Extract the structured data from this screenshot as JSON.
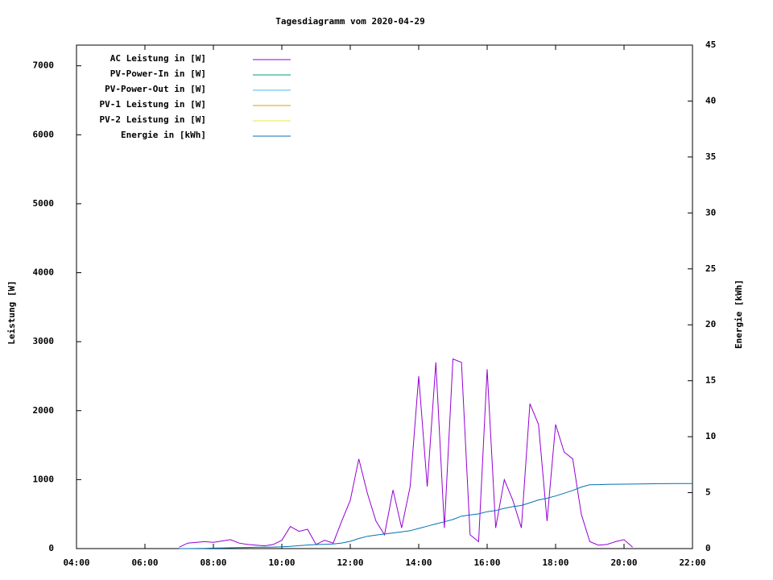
{
  "chart_data": {
    "type": "line",
    "title": "Tagesdiagramm vom 2020-04-29",
    "ylabel": "Leistung [W]",
    "y2label": "Energie [kWh]",
    "x": [
      4,
      4.25,
      4.5,
      4.75,
      5,
      5.25,
      5.5,
      5.75,
      6,
      6.25,
      6.5,
      6.75,
      7,
      7.25,
      7.5,
      7.75,
      8,
      8.25,
      8.5,
      8.75,
      9,
      9.25,
      9.5,
      9.75,
      10,
      10.25,
      10.5,
      10.75,
      11,
      11.25,
      11.5,
      11.75,
      12,
      12.25,
      12.5,
      12.75,
      13,
      13.25,
      13.5,
      13.75,
      14,
      14.25,
      14.5,
      14.75,
      15,
      15.25,
      15.5,
      15.75,
      16,
      16.25,
      16.5,
      16.75,
      17,
      17.25,
      17.5,
      17.75,
      18,
      18.25,
      18.5,
      18.75,
      19,
      19.25,
      19.5,
      19.75,
      20,
      20.25,
      20.5,
      20.75,
      21,
      21.25,
      21.5,
      21.75,
      22
    ],
    "xlim": [
      4,
      22
    ],
    "xticks": [
      {
        "value": 4,
        "label": "04:00"
      },
      {
        "value": 6,
        "label": "06:00"
      },
      {
        "value": 8,
        "label": "08:00"
      },
      {
        "value": 10,
        "label": "10:00"
      },
      {
        "value": 12,
        "label": "12:00"
      },
      {
        "value": 14,
        "label": "14:00"
      },
      {
        "value": 16,
        "label": "16:00"
      },
      {
        "value": 18,
        "label": "18:00"
      },
      {
        "value": 20,
        "label": "20:00"
      },
      {
        "value": 22,
        "label": "22:00"
      }
    ],
    "ylim": [
      0,
      7300
    ],
    "yticks": [
      0,
      1000,
      2000,
      3000,
      4000,
      5000,
      6000,
      7000
    ],
    "y2lim": [
      0,
      45
    ],
    "y2ticks": [
      0,
      5,
      10,
      15,
      20,
      25,
      30,
      35,
      40,
      45
    ],
    "series": [
      {
        "name": "AC Leistung in [W]",
        "color": "#9400d3",
        "values": [
          null,
          null,
          null,
          null,
          null,
          null,
          null,
          null,
          null,
          null,
          null,
          null,
          20,
          80,
          90,
          100,
          90,
          110,
          130,
          80,
          60,
          50,
          40,
          60,
          120,
          320,
          250,
          280,
          60,
          120,
          80,
          400,
          700,
          1300,
          800,
          400,
          200,
          850,
          300,
          900,
          2500,
          900,
          2700,
          300,
          2750,
          2700,
          200,
          100,
          2600,
          300,
          1000,
          700,
          300,
          2100,
          1800,
          400,
          1800,
          1400,
          1300,
          500,
          100,
          50,
          60,
          100,
          130,
          20,
          null,
          null,
          null,
          null,
          null,
          null,
          null
        ]
      },
      {
        "name": "PV-Power-In in [W]",
        "color": "#009e73",
        "values": [
          null,
          null,
          null,
          null,
          null,
          null,
          null,
          null,
          null,
          null,
          null,
          null,
          null,
          null,
          null,
          null,
          null,
          null,
          null,
          null,
          null,
          null,
          null,
          null,
          null,
          null,
          null,
          null,
          null,
          null,
          null,
          null,
          null,
          null,
          null,
          null,
          null,
          null,
          null,
          null,
          null,
          null,
          null,
          null,
          null,
          null,
          null,
          null,
          null,
          null,
          null,
          null,
          null,
          null,
          null,
          null,
          null,
          null,
          null,
          null,
          null,
          null,
          null,
          null,
          null,
          null,
          null,
          null,
          null,
          null,
          null,
          null,
          null
        ]
      },
      {
        "name": "PV-Power-Out in [W]",
        "color": "#56b4e9",
        "values": [
          null,
          null,
          null,
          null,
          null,
          null,
          null,
          null,
          null,
          null,
          null,
          null,
          null,
          null,
          null,
          null,
          null,
          null,
          null,
          null,
          null,
          null,
          null,
          null,
          null,
          null,
          null,
          null,
          null,
          null,
          null,
          null,
          null,
          null,
          null,
          null,
          null,
          null,
          null,
          null,
          null,
          null,
          null,
          null,
          null,
          null,
          null,
          null,
          null,
          null,
          null,
          null,
          null,
          null,
          null,
          null,
          null,
          null,
          null,
          null,
          null,
          null,
          null,
          null,
          null,
          null,
          null,
          null,
          null,
          null,
          null,
          null,
          null
        ]
      },
      {
        "name": "PV-1 Leistung in [W]",
        "color": "#e69f00",
        "values": [
          null,
          null,
          null,
          null,
          null,
          null,
          null,
          null,
          null,
          null,
          null,
          null,
          null,
          null,
          null,
          null,
          null,
          null,
          null,
          null,
          null,
          null,
          null,
          null,
          null,
          null,
          null,
          null,
          null,
          null,
          null,
          null,
          null,
          null,
          null,
          null,
          null,
          null,
          null,
          null,
          null,
          null,
          null,
          null,
          null,
          null,
          null,
          null,
          null,
          null,
          null,
          null,
          null,
          null,
          null,
          null,
          null,
          null,
          null,
          null,
          null,
          null,
          null,
          null,
          null,
          null,
          null,
          null,
          null,
          null,
          null,
          null,
          null
        ]
      },
      {
        "name": "PV-2 Leistung in [W]",
        "color": "#f0e442",
        "values": [
          null,
          null,
          null,
          null,
          null,
          null,
          null,
          null,
          null,
          null,
          null,
          null,
          null,
          null,
          null,
          null,
          null,
          null,
          null,
          null,
          null,
          null,
          null,
          null,
          null,
          null,
          null,
          null,
          null,
          null,
          null,
          null,
          null,
          null,
          null,
          null,
          null,
          null,
          null,
          null,
          null,
          null,
          null,
          null,
          null,
          null,
          null,
          null,
          null,
          null,
          null,
          null,
          null,
          null,
          null,
          null,
          null,
          null,
          null,
          null,
          null,
          null,
          null,
          null,
          null,
          null,
          null,
          null,
          null,
          null,
          null,
          null,
          null
        ]
      },
      {
        "name": "Energie in [kWh]",
        "color": "#0072b2",
        "axis": "y2",
        "values": [
          null,
          null,
          null,
          null,
          null,
          null,
          null,
          null,
          null,
          null,
          null,
          null,
          0,
          0,
          0.01,
          0.02,
          0.04,
          0.05,
          0.07,
          0.09,
          0.1,
          0.12,
          0.13,
          0.14,
          0.16,
          0.2,
          0.26,
          0.32,
          0.36,
          0.38,
          0.42,
          0.5,
          0.65,
          0.9,
          1.1,
          1.2,
          1.3,
          1.4,
          1.5,
          1.6,
          1.8,
          2.0,
          2.2,
          2.4,
          2.6,
          2.9,
          3.0,
          3.1,
          3.3,
          3.4,
          3.6,
          3.75,
          3.85,
          4.1,
          4.35,
          4.5,
          4.7,
          4.95,
          5.2,
          5.5,
          5.7,
          5.72,
          5.74,
          5.75,
          5.76,
          5.77,
          5.78,
          5.79,
          5.8,
          5.8,
          5.81,
          5.82,
          5.82
        ]
      }
    ]
  }
}
